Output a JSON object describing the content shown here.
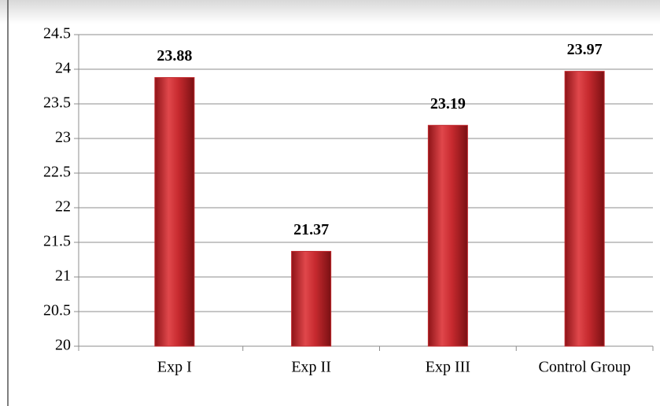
{
  "chart_data": {
    "type": "bar",
    "categories": [
      "Exp I",
      "Exp II",
      "Exp III",
      "Control Group"
    ],
    "values": [
      23.88,
      21.37,
      23.19,
      23.97
    ],
    "color": "#c0282d",
    "ylim": [
      20,
      24.5
    ],
    "yticks": [
      20,
      20.5,
      21,
      21.5,
      22,
      22.5,
      23,
      23.5,
      24,
      24.5
    ],
    "grid": true
  }
}
